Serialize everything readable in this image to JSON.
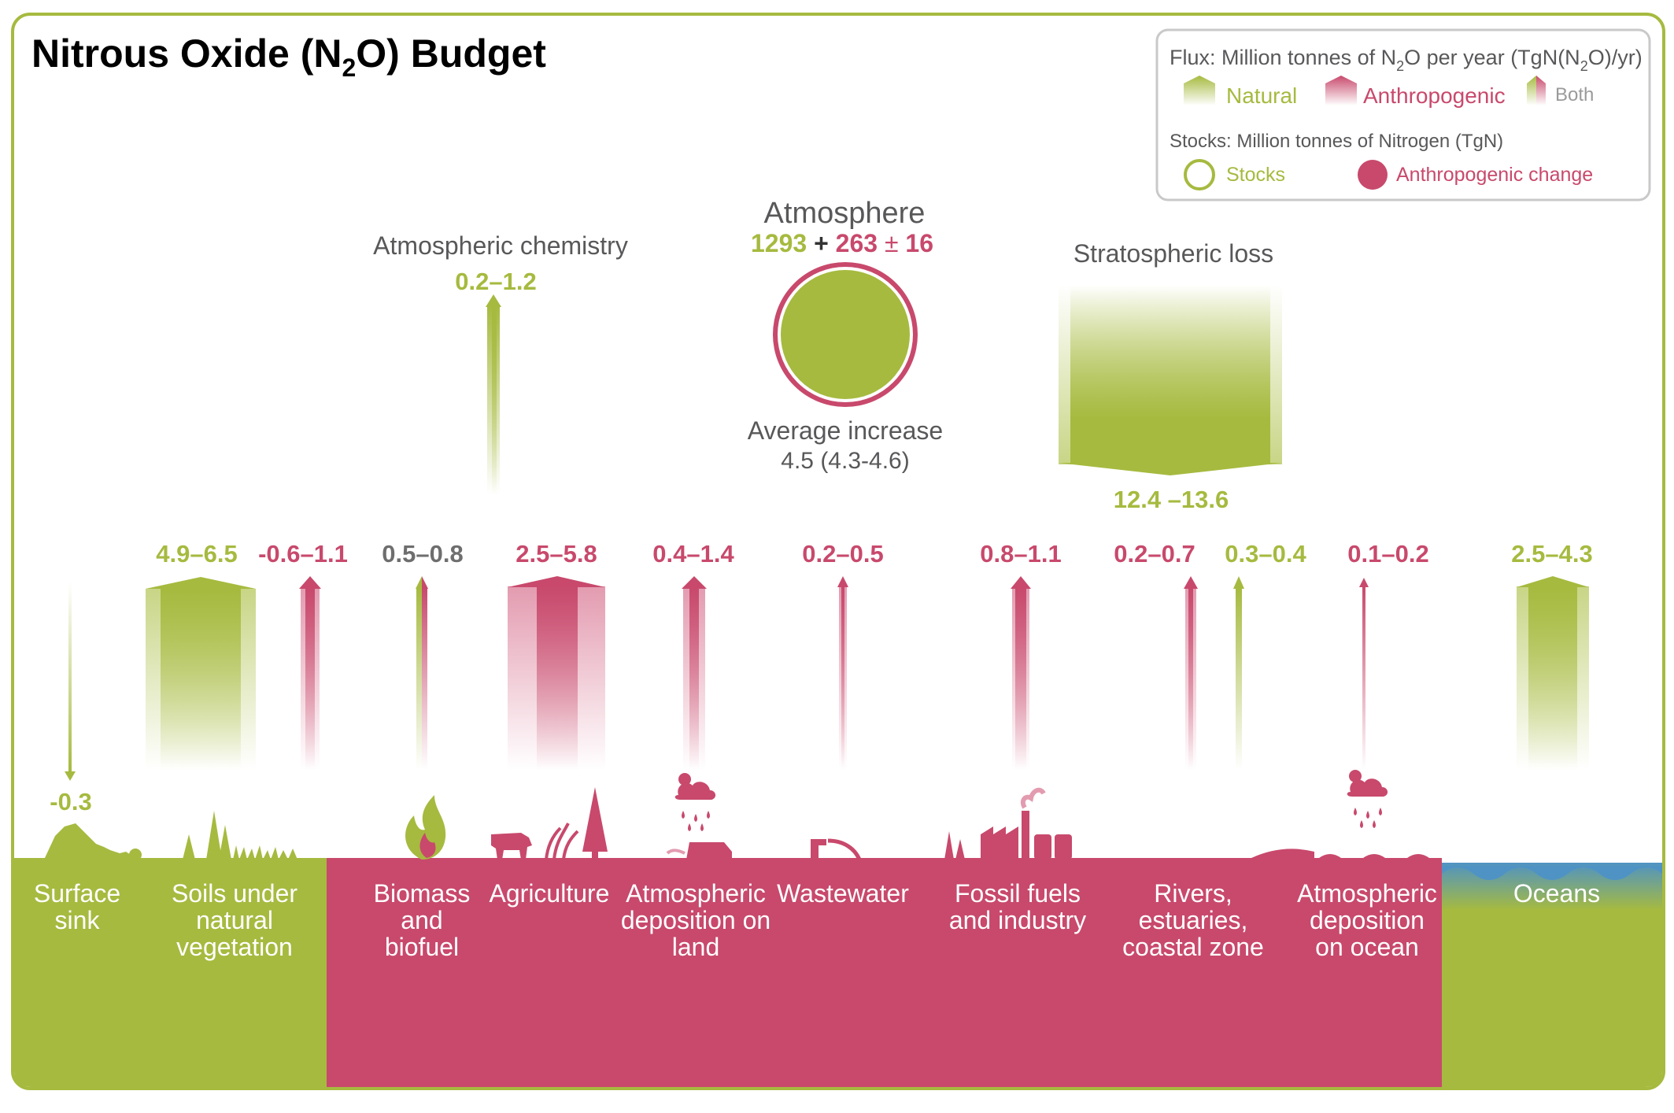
{
  "title": {
    "main": "Nitrous Oxide (N",
    "sub": "2",
    "end": "O) Budget"
  },
  "legend": {
    "flux_title_a": "Flux: Million tonnes of N",
    "flux_title_sub": "2",
    "flux_title_b": "O per year (TgN(N",
    "flux_title_sub2": "2",
    "flux_title_c": "O)/yr)",
    "natural": "Natural",
    "anthropogenic": "Anthropogenic",
    "both": "Both",
    "stocks_title": "Stocks: Million tonnes of Nitrogen (TgN)",
    "stocks": "Stocks",
    "anthropogenic_change": "Anthropogenic change"
  },
  "atmosphere": {
    "title": "Atmosphere",
    "stock": "1293",
    "plus": "+",
    "change": "263",
    "pm": "±",
    "uncertainty": "16",
    "increase_label": "Average increase",
    "increase_value": "4.5 (4.3-4.6)"
  },
  "atmospheric_chemistry": {
    "label": "Atmospheric chemistry",
    "value": "0.2–1.2"
  },
  "stratospheric_loss": {
    "label": "Stratospheric loss",
    "value": "12.4 –13.6"
  },
  "fluxes": [
    {
      "id": "surface-sink",
      "value": "-0.3",
      "type": "natural"
    },
    {
      "id": "soils",
      "value": "4.9–6.5",
      "type": "natural"
    },
    {
      "id": "soils-anthro",
      "value": "-0.6–1.1",
      "type": "anthropogenic"
    },
    {
      "id": "biomass",
      "value": "0.5–0.8",
      "type": "both"
    },
    {
      "id": "agriculture",
      "value": "2.5–5.8",
      "type": "anthropogenic"
    },
    {
      "id": "atm-dep-land",
      "value": "0.4–1.4",
      "type": "anthropogenic"
    },
    {
      "id": "wastewater",
      "value": "0.2–0.5",
      "type": "anthropogenic"
    },
    {
      "id": "fossil",
      "value": "0.8–1.1",
      "type": "anthropogenic"
    },
    {
      "id": "rivers-anthro",
      "value": "0.2–0.7",
      "type": "anthropogenic"
    },
    {
      "id": "rivers-natural",
      "value": "0.3–0.4",
      "type": "natural"
    },
    {
      "id": "atm-dep-ocean",
      "value": "0.1–0.2",
      "type": "anthropogenic"
    },
    {
      "id": "oceans",
      "value": "2.5–4.3",
      "type": "natural"
    }
  ],
  "ground_labels": {
    "surface_sink": [
      "Surface",
      "sink"
    ],
    "soils": [
      "Soils under",
      "natural",
      "vegetation"
    ],
    "biomass": [
      "Biomass",
      "and",
      "biofuel"
    ],
    "agriculture": [
      "Agriculture"
    ],
    "atm_dep_land": [
      "Atmospheric",
      "deposition on",
      "land"
    ],
    "wastewater": [
      "Wastewater"
    ],
    "fossil": [
      "Fossil fuels",
      "and industry"
    ],
    "rivers": [
      "Rivers,",
      "estuaries,",
      "coastal zone"
    ],
    "atm_dep_ocean": [
      "Atmospheric",
      "deposition",
      "on ocean"
    ],
    "oceans": [
      "Oceans"
    ]
  },
  "colors": {
    "natural": "#a6ba3f",
    "anthropogenic": "#c8496c",
    "grey": "#58585a",
    "ocean_blue": "#4f93c4",
    "frame": "#a6ba3f"
  }
}
